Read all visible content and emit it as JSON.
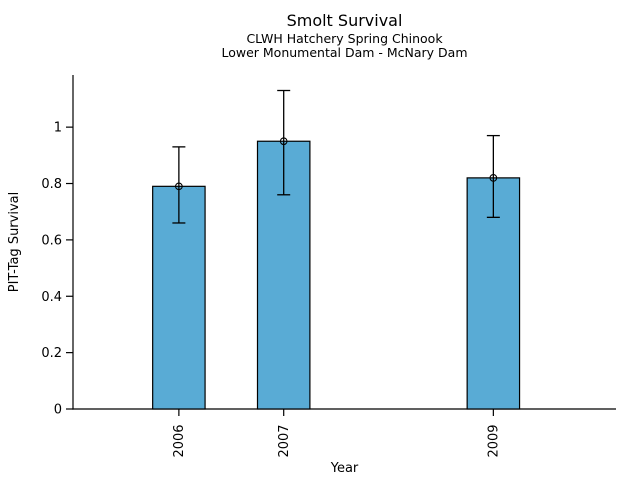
{
  "chart_data": {
    "type": "bar",
    "title": "Smolt Survival",
    "subtitle_lines": [
      "CLWH Hatchery Spring Chinook",
      "Lower Monumental Dam - McNary Dam"
    ],
    "xlabel": "Year",
    "ylabel": "PIT-Tag Survival",
    "x": [
      2006,
      2007,
      2009
    ],
    "xtick_labels": [
      "2006",
      "2007",
      "2009"
    ],
    "values": [
      0.79,
      0.95,
      0.82
    ],
    "error_low": [
      0.66,
      0.76,
      0.68
    ],
    "error_high": [
      0.93,
      1.13,
      0.97
    ],
    "yticks": [
      0,
      0.2,
      0.4,
      0.6,
      0.8,
      1
    ],
    "ytick_labels": [
      "0",
      "0.2",
      "0.4",
      "0.6",
      "0.8",
      "1"
    ],
    "ylim": [
      0,
      1.185
    ],
    "xlim": [
      2004.99,
      2010.17
    ],
    "bar_width_years": 0.5,
    "bar_fill": "#59ABD5",
    "bar_edge": "#000000",
    "errorbar_color": "#000000",
    "marker": "open-circle",
    "grid": false,
    "legend": false
  }
}
